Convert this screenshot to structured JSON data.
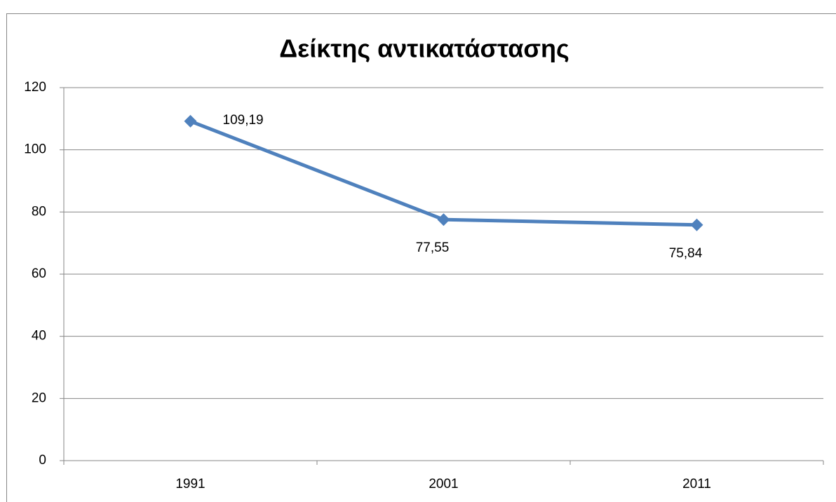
{
  "chart_data": {
    "type": "line",
    "title": "Δείκτης αντικατάστασης",
    "categories": [
      "1991",
      "2001",
      "2011"
    ],
    "values": [
      109.19,
      77.55,
      75.84
    ],
    "value_labels": [
      "109,19",
      "77,55",
      "75,84"
    ],
    "color": "#4f81bd",
    "ylim": [
      0,
      120
    ],
    "yticks": [
      0,
      20,
      40,
      60,
      80,
      100,
      120
    ],
    "grid": true
  }
}
